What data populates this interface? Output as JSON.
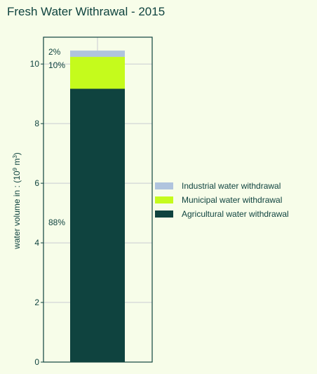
{
  "chart_data": {
    "type": "bar",
    "stacked": true,
    "title": "Fresh Water Withrawal - 2015",
    "xlabel": "",
    "ylabel": "water volume in : (10^9 m^3)",
    "ylim": [
      0,
      10.9
    ],
    "yticks": [
      0,
      2,
      4,
      6,
      8,
      10
    ],
    "categories": [
      ""
    ],
    "grid": true,
    "legend_position": "right",
    "series": [
      {
        "name": "Agricultural water withdrawal",
        "values": [
          9.17
        ],
        "percent_label": "88%",
        "color": "#0f433f"
      },
      {
        "name": "Municipal water withdrawal",
        "values": [
          1.07
        ],
        "percent_label": "10%",
        "color": "#c5fb1c"
      },
      {
        "name": "Industrial water withdrawal",
        "values": [
          0.21
        ],
        "percent_label": "2%",
        "color": "#b0c4de"
      }
    ]
  },
  "colors": {
    "background": "#f7fde9",
    "axis": "#0f433f",
    "grid": "#c8ccd2",
    "text": "#0f433f"
  }
}
